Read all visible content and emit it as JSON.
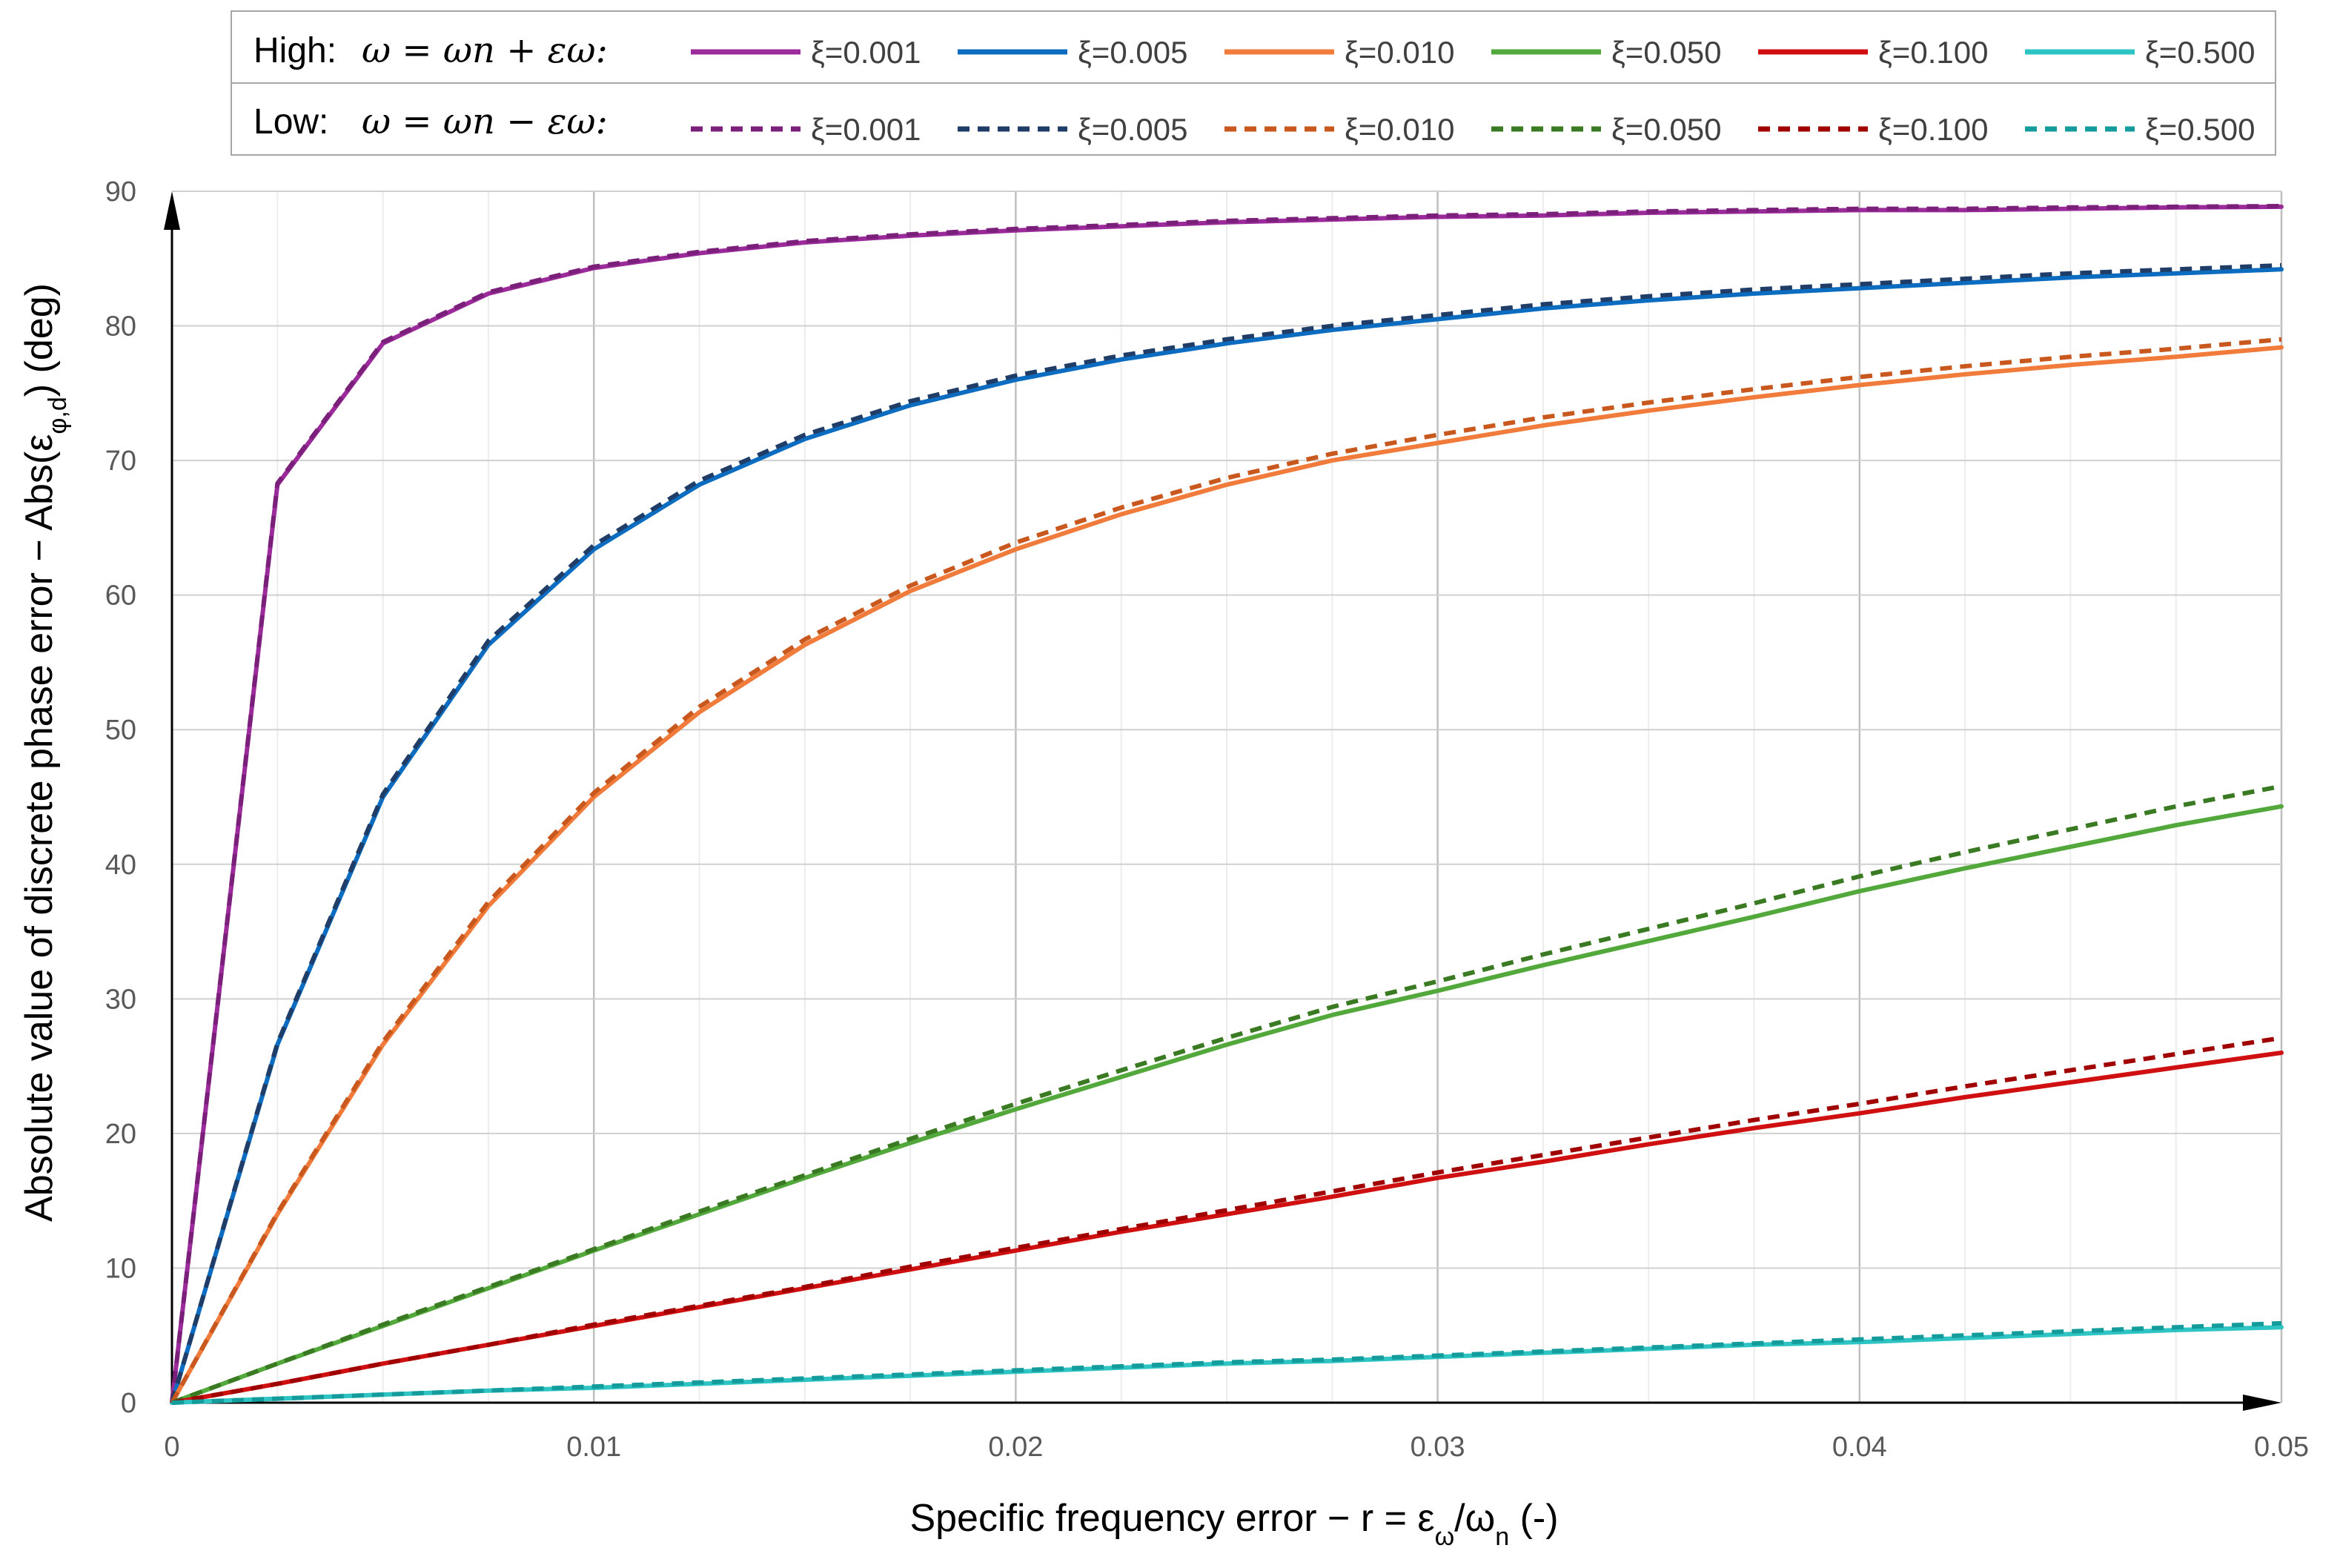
{
  "chart_data": {
    "type": "line",
    "title": "",
    "xlabel": "Specific frequency error − r = ε",
    "xlabel_sub1": "ω",
    "xlabel_mid": "/ω",
    "xlabel_sub2": "n",
    "xlabel_tail": " (-)",
    "ylabel": "Absolute value of discrete phase error − Abs(ε",
    "ylabel_sub": "φ,d",
    "ylabel_tail": ") (deg)",
    "xlim": [
      0,
      0.05
    ],
    "ylim": [
      0,
      90
    ],
    "xticks": [
      0,
      0.01,
      0.02,
      0.03,
      0.04,
      0.05
    ],
    "xtick_labels": [
      "0",
      "0.01",
      "0.02",
      "0.03",
      "0.04",
      "0.05"
    ],
    "yticks": [
      0,
      10,
      20,
      30,
      40,
      50,
      60,
      70,
      80,
      90
    ],
    "ytick_labels": [
      "0",
      "10",
      "20",
      "30",
      "40",
      "50",
      "60",
      "70",
      "80",
      "90"
    ],
    "grid": true,
    "legend_position": "top",
    "legend": {
      "high_label": "High:",
      "high_formula": "ω = ωn + εω:",
      "low_label": "Low:",
      "low_formula": "ω = ωn − εω:"
    },
    "x": [
      0,
      0.0025,
      0.005,
      0.0075,
      0.01,
      0.0125,
      0.015,
      0.0175,
      0.02,
      0.0225,
      0.025,
      0.0275,
      0.03,
      0.0325,
      0.035,
      0.0375,
      0.04,
      0.0425,
      0.045,
      0.0475,
      0.05
    ],
    "series": [
      {
        "group": "High",
        "name": "ξ=0.001",
        "color": "#9B2A9B",
        "style": "solid",
        "values": [
          0,
          68.2,
          78.7,
          82.4,
          84.3,
          85.4,
          86.2,
          86.7,
          87.1,
          87.4,
          87.7,
          87.9,
          88.1,
          88.2,
          88.4,
          88.5,
          88.6,
          88.6,
          88.7,
          88.8,
          88.85
        ]
      },
      {
        "group": "High",
        "name": "ξ=0.005",
        "color": "#0B6CC0",
        "style": "solid",
        "values": [
          0,
          26.6,
          45.0,
          56.3,
          63.4,
          68.2,
          71.6,
          74.1,
          76.0,
          77.5,
          78.7,
          79.7,
          80.5,
          81.3,
          81.9,
          82.4,
          82.8,
          83.2,
          83.6,
          83.9,
          84.2
        ]
      },
      {
        "group": "High",
        "name": "ξ=0.010",
        "color": "#F07B3A",
        "style": "solid",
        "values": [
          0,
          14.0,
          26.6,
          36.9,
          45.0,
          51.3,
          56.3,
          60.3,
          63.4,
          66.0,
          68.2,
          70.0,
          71.3,
          72.6,
          73.7,
          74.7,
          75.6,
          76.4,
          77.1,
          77.7,
          78.4
        ]
      },
      {
        "group": "High",
        "name": "ξ=0.050",
        "color": "#52A83A",
        "style": "solid",
        "values": [
          0,
          2.9,
          5.7,
          8.5,
          11.3,
          14.0,
          16.7,
          19.3,
          21.8,
          24.2,
          26.6,
          28.8,
          30.6,
          32.5,
          34.3,
          36.1,
          38.0,
          39.7,
          41.3,
          42.9,
          44.3
        ]
      },
      {
        "group": "High",
        "name": "ξ=0.100",
        "color": "#D01010",
        "style": "solid",
        "values": [
          0,
          1.4,
          2.9,
          4.3,
          5.7,
          7.1,
          8.5,
          9.9,
          11.3,
          12.7,
          14.0,
          15.3,
          16.7,
          17.9,
          19.2,
          20.4,
          21.5,
          22.7,
          23.8,
          24.9,
          26.0
        ]
      },
      {
        "group": "High",
        "name": "ξ=0.500",
        "color": "#2EC4C4",
        "style": "solid",
        "values": [
          0,
          0.3,
          0.6,
          0.9,
          1.1,
          1.4,
          1.7,
          2.0,
          2.3,
          2.6,
          2.9,
          3.1,
          3.4,
          3.7,
          4.0,
          4.3,
          4.5,
          4.8,
          5.1,
          5.4,
          5.6
        ]
      },
      {
        "group": "Low",
        "name": "ξ=0.001",
        "color": "#7A1F7A",
        "style": "dashed",
        "values": [
          0,
          68.3,
          78.8,
          82.5,
          84.4,
          85.5,
          86.3,
          86.8,
          87.2,
          87.5,
          87.8,
          88.0,
          88.2,
          88.3,
          88.5,
          88.6,
          88.7,
          88.7,
          88.8,
          88.85,
          88.9
        ]
      },
      {
        "group": "Low",
        "name": "ξ=0.005",
        "color": "#1F3D66",
        "style": "dashed",
        "values": [
          0,
          26.7,
          45.2,
          56.6,
          63.7,
          68.5,
          71.9,
          74.4,
          76.3,
          77.8,
          79.0,
          80.0,
          80.8,
          81.6,
          82.2,
          82.7,
          83.1,
          83.5,
          83.9,
          84.2,
          84.5
        ]
      },
      {
        "group": "Low",
        "name": "ξ=0.010",
        "color": "#C8581E",
        "style": "dashed",
        "values": [
          0,
          14.1,
          26.8,
          37.2,
          45.3,
          51.7,
          56.7,
          60.7,
          63.9,
          66.5,
          68.7,
          70.5,
          71.9,
          73.2,
          74.3,
          75.3,
          76.2,
          77.0,
          77.7,
          78.3,
          79.0
        ]
      },
      {
        "group": "Low",
        "name": "ξ=0.050",
        "color": "#3A7A22",
        "style": "dashed",
        "values": [
          0,
          2.9,
          5.8,
          8.6,
          11.4,
          14.2,
          16.9,
          19.6,
          22.2,
          24.7,
          27.1,
          29.4,
          31.3,
          33.3,
          35.2,
          37.1,
          39.1,
          40.9,
          42.6,
          44.3,
          45.8
        ]
      },
      {
        "group": "Low",
        "name": "ξ=0.100",
        "color": "#A00000",
        "style": "dashed",
        "values": [
          0,
          1.4,
          2.9,
          4.3,
          5.8,
          7.2,
          8.6,
          10.1,
          11.5,
          12.9,
          14.3,
          15.7,
          17.1,
          18.4,
          19.7,
          21.0,
          22.2,
          23.5,
          24.7,
          25.9,
          27.1
        ]
      },
      {
        "group": "Low",
        "name": "ξ=0.500",
        "color": "#149C9C",
        "style": "dashed",
        "values": [
          0,
          0.3,
          0.6,
          0.9,
          1.2,
          1.5,
          1.8,
          2.1,
          2.4,
          2.7,
          3.0,
          3.2,
          3.5,
          3.8,
          4.1,
          4.4,
          4.7,
          5.0,
          5.3,
          5.6,
          5.9
        ]
      }
    ]
  }
}
